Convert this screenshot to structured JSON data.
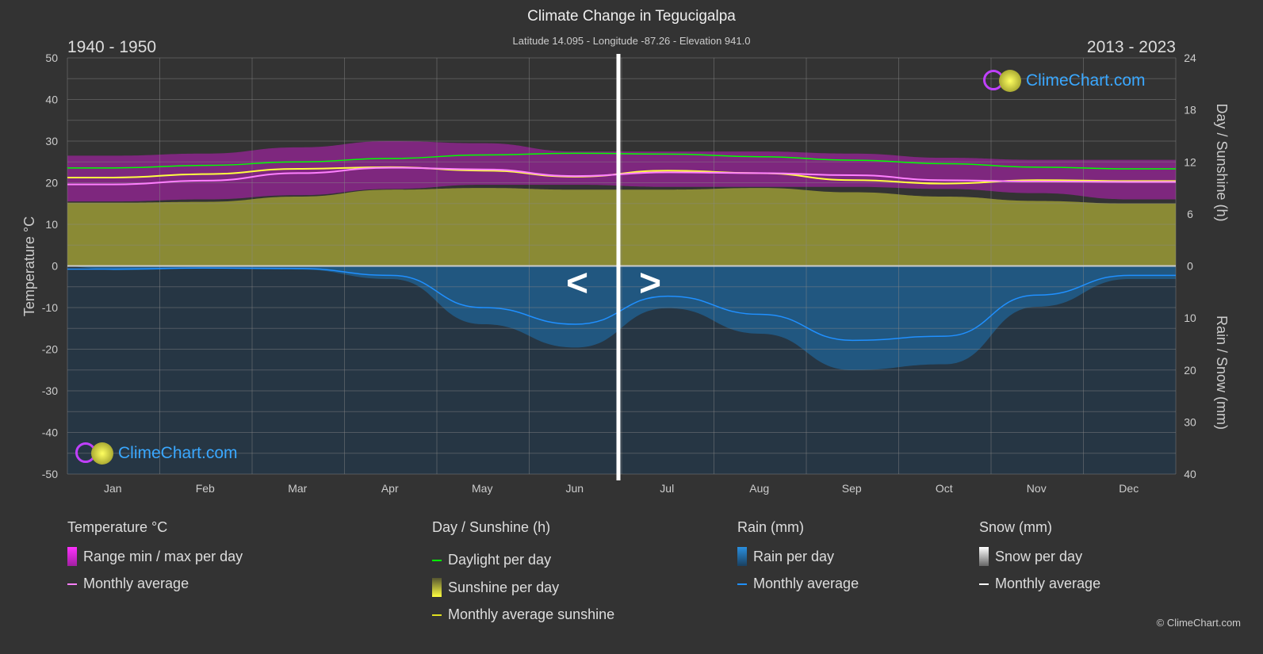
{
  "title": "Climate Change in Tegucigalpa",
  "subtitle": "Latitude 14.095 - Longitude -87.26 - Elevation 941.0",
  "period_left": "1940 - 1950",
  "period_right": "2013 - 2023",
  "nav": {
    "prev": "<",
    "next": ">"
  },
  "logo_text": "ClimeChart.com",
  "copyright": "© ClimeChart.com",
  "colors": {
    "background": "#333333",
    "temp_range": "#c020c0",
    "temp_avg": "#ff80ff",
    "daylight": "#00ff00",
    "sunshine": "#a0a030",
    "sunshine_avg": "#ffff40",
    "rain": "#1e6ea8",
    "rain_avg": "#2090ff",
    "snow_avg": "#ffffff"
  },
  "chart_data": {
    "type": "line",
    "title": "Climate Change in Tegucigalpa",
    "categories": [
      "Jan",
      "Feb",
      "Mar",
      "Apr",
      "May",
      "Jun",
      "Jul",
      "Aug",
      "Sep",
      "Oct",
      "Nov",
      "Dec"
    ],
    "ylabel_left": "Temperature °C",
    "ylabel_right_top": "Day / Sunshine (h)",
    "ylabel_right_bottom": "Rain / Snow (mm)",
    "ylim_left": [
      -50,
      50
    ],
    "yticks_left": [
      "50",
      "40",
      "30",
      "20",
      "10",
      "0",
      "-10",
      "-20",
      "-30",
      "-40",
      "-50"
    ],
    "yticks_right_top": [
      "24",
      "18",
      "12",
      "6",
      "0"
    ],
    "yticks_right_bottom": [
      "0",
      "10",
      "20",
      "30",
      "40"
    ],
    "sunshine_range_h": [
      0,
      24
    ],
    "rain_range_mm": [
      0,
      40
    ],
    "grid": true,
    "series": [
      {
        "name": "Range min / max per day",
        "unit": "°C",
        "max": [
          26.5,
          27,
          28.5,
          30,
          29.5,
          27.5,
          27.5,
          27.5,
          27,
          26,
          25.5,
          25.5
        ],
        "min": [
          15.5,
          16,
          17,
          18.5,
          19.5,
          19.5,
          19,
          19,
          19,
          18.5,
          17.5,
          16
        ]
      },
      {
        "name": "Monthly average",
        "unit": "°C",
        "values": [
          19.6,
          20.5,
          22.3,
          23.6,
          23.2,
          21.6,
          22.5,
          22.3,
          21.8,
          20.6,
          20.3,
          20.2
        ]
      },
      {
        "name": "Daylight per day",
        "unit": "h",
        "values": [
          11.3,
          11.6,
          12.0,
          12.4,
          12.8,
          13.0,
          12.9,
          12.6,
          12.2,
          11.8,
          11.4,
          11.2
        ]
      },
      {
        "name": "Sunshine per day",
        "unit": "h",
        "values": [
          7.3,
          7.4,
          8.0,
          8.8,
          9.0,
          8.8,
          8.8,
          9.0,
          8.5,
          8.0,
          7.5,
          7.2
        ]
      },
      {
        "name": "Monthly average sunshine",
        "unit": "h",
        "values": [
          10.2,
          10.6,
          11.2,
          11.4,
          11.0,
          10.3,
          11.0,
          10.7,
          9.9,
          9.5,
          9.9,
          9.8
        ]
      },
      {
        "name": "Rain monthly average",
        "unit": "mm",
        "values": [
          0.6,
          0.4,
          0.5,
          1.8,
          8.0,
          11.2,
          5.8,
          9.3,
          14.3,
          13.5,
          5.6,
          1.8
        ]
      }
    ]
  },
  "legend": {
    "temperature": {
      "header": "Temperature °C",
      "items": [
        "Range min / max per day",
        "Monthly average"
      ]
    },
    "sunshine": {
      "header": "Day / Sunshine (h)",
      "items": [
        "Daylight per day",
        "Sunshine per day",
        "Monthly average sunshine"
      ]
    },
    "rain": {
      "header": "Rain (mm)",
      "items": [
        "Rain per day",
        "Monthly average"
      ]
    },
    "snow": {
      "header": "Snow (mm)",
      "items": [
        "Snow per day",
        "Monthly average"
      ]
    }
  }
}
